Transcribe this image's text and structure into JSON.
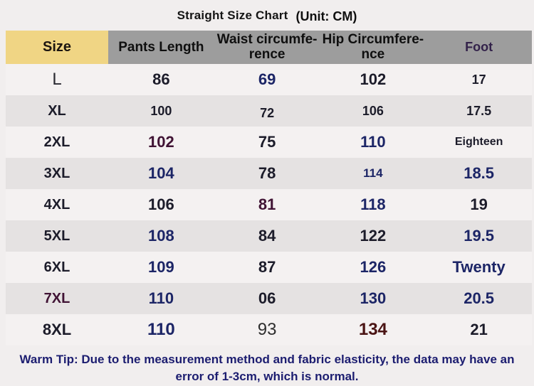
{
  "title": {
    "main": "Straight Size Chart",
    "unit": "(Unit: CM)"
  },
  "colors": {
    "page_bg": "#f1eeee",
    "header_bg": "#9d9d9d",
    "header_size_bg": "#f0d584",
    "row_light": "#f4f1f1",
    "row_gray": "#e5e2e2",
    "text_dark": "#1c1c2a",
    "text_navy": "#1c2566",
    "text_maroon": "#401334",
    "text_dark_red": "#4a1414",
    "foot_header_purple": "#33224a",
    "tip_navy": "#1c1d70"
  },
  "header": {
    "size": "Size",
    "pants": "Pants Length",
    "waist_l1": "Waist circumfe-",
    "waist_l2": "rence",
    "hip_l1": "Hip Circumfere-",
    "hip_l2": "nce",
    "foot": "Foot"
  },
  "rows": [
    {
      "cells": [
        {
          "v": "L",
          "c": "thin xl"
        },
        {
          "v": "86",
          "c": "dark lg"
        },
        {
          "v": "69",
          "c": "navy lg"
        },
        {
          "v": "102",
          "c": "dark lg"
        },
        {
          "v": "17",
          "c": "dark md"
        }
      ]
    },
    {
      "cells": [
        {
          "v": "XL",
          "c": "dark szl"
        },
        {
          "v": "100",
          "c": "dark md"
        },
        {
          "v": "72",
          "c": "dark md low"
        },
        {
          "v": "106",
          "c": "dark md"
        },
        {
          "v": "17.5",
          "c": "dark md"
        }
      ]
    },
    {
      "cells": [
        {
          "v": "2XL",
          "c": "dark szl"
        },
        {
          "v": "102",
          "c": "maroon lg"
        },
        {
          "v": "75",
          "c": "dark lg"
        },
        {
          "v": "110",
          "c": "navy lg"
        },
        {
          "v": "Eighteen",
          "c": "dark sm"
        }
      ]
    },
    {
      "cells": [
        {
          "v": "3XL",
          "c": "dark szl"
        },
        {
          "v": "104",
          "c": "navy lg"
        },
        {
          "v": "78",
          "c": "dark lg"
        },
        {
          "v": "114",
          "c": "navy smm"
        },
        {
          "v": "18.5",
          "c": "navy lg"
        }
      ]
    },
    {
      "cells": [
        {
          "v": "4XL",
          "c": "dark szl"
        },
        {
          "v": "106",
          "c": "dark lg"
        },
        {
          "v": "81",
          "c": "maroon lg"
        },
        {
          "v": "118",
          "c": "navy lg"
        },
        {
          "v": "19",
          "c": "dark lg"
        }
      ]
    },
    {
      "cells": [
        {
          "v": "5XL",
          "c": "dark szl"
        },
        {
          "v": "108",
          "c": "navy lg"
        },
        {
          "v": "84",
          "c": "dark lg"
        },
        {
          "v": "122",
          "c": "dark lg"
        },
        {
          "v": "19.5",
          "c": "navy lg"
        }
      ]
    },
    {
      "cells": [
        {
          "v": "6XL",
          "c": "dark szl"
        },
        {
          "v": "109",
          "c": "navy lg"
        },
        {
          "v": "87",
          "c": "dark lg"
        },
        {
          "v": "126",
          "c": "navy lg"
        },
        {
          "v": "Twenty",
          "c": "navy lg"
        }
      ]
    },
    {
      "cells": [
        {
          "v": "7XL",
          "c": "maroon szl"
        },
        {
          "v": "110",
          "c": "navy lg"
        },
        {
          "v": "06",
          "c": "dark lg"
        },
        {
          "v": "130",
          "c": "navy lg"
        },
        {
          "v": "20.5",
          "c": "navy lg"
        }
      ]
    },
    {
      "cells": [
        {
          "v": "8XL",
          "c": "dark lg"
        },
        {
          "v": "110",
          "c": "navy xl"
        },
        {
          "v": "93",
          "c": "plain xl"
        },
        {
          "v": "134",
          "c": "red xl"
        },
        {
          "v": "21",
          "c": "dark lg"
        }
      ]
    }
  ],
  "footnote": "Warm Tip: Due to the measurement method and fabric elasticity, the data may have an error of 1-3cm, which is normal.",
  "chart_data": {
    "type": "table",
    "title": "Straight Size Chart",
    "unit": "CM",
    "columns": [
      "Size",
      "Pants Length",
      "Waist circumference",
      "Hip Circumference",
      "Foot"
    ],
    "rows": [
      [
        "L",
        "86",
        "69",
        "102",
        "17"
      ],
      [
        "XL",
        "100",
        "72",
        "106",
        "17.5"
      ],
      [
        "2XL",
        "102",
        "75",
        "110",
        "Eighteen"
      ],
      [
        "3XL",
        "104",
        "78",
        "114",
        "18.5"
      ],
      [
        "4XL",
        "106",
        "81",
        "118",
        "19"
      ],
      [
        "5XL",
        "108",
        "84",
        "122",
        "19.5"
      ],
      [
        "6XL",
        "109",
        "87",
        "126",
        "Twenty"
      ],
      [
        "7XL",
        "110",
        "06",
        "130",
        "20.5"
      ],
      [
        "8XL",
        "110",
        "93",
        "134",
        "21"
      ]
    ],
    "footnote": "Warm Tip: Due to the measurement method and fabric elasticity, the data may have an error of 1-3cm, which is normal."
  }
}
